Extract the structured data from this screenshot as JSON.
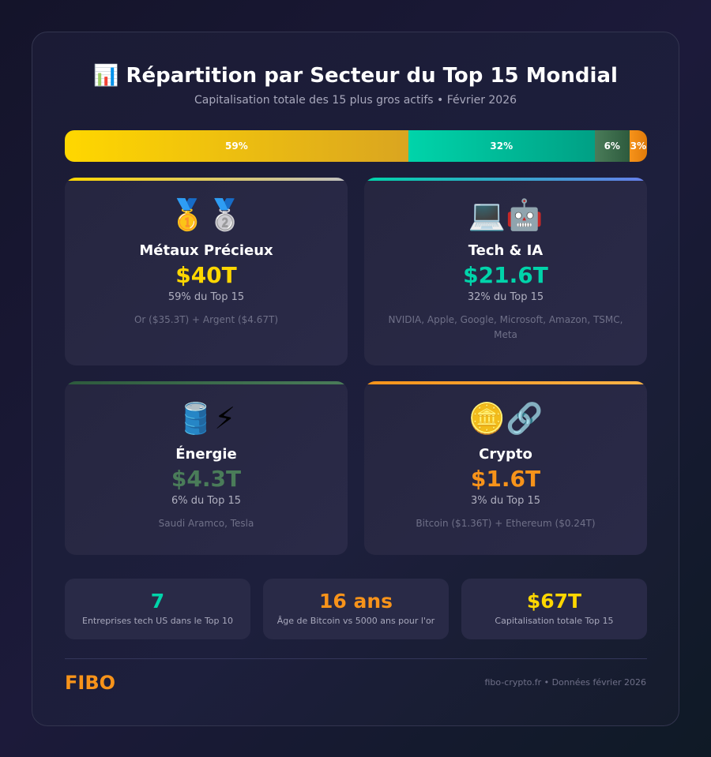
{
  "header": {
    "title": "📊 Répartition par Secteur du Top 15 Mondial",
    "subtitle": "Capitalisation totale des 15 plus gros actifs • Février 2026"
  },
  "distribution": [
    {
      "label": "59%",
      "percent": 59,
      "color": "#ffd700"
    },
    {
      "label": "32%",
      "percent": 32,
      "color": "#00d4aa"
    },
    {
      "label": "6%",
      "percent": 6,
      "color": "#4a7c59"
    },
    {
      "label": "3%",
      "percent": 3,
      "color": "#f7931a"
    }
  ],
  "sectors": [
    {
      "emoji": "🥇🥈",
      "name": "Métaux Précieux",
      "value": "$40T",
      "share": "59% du Top 15",
      "details": "Or ($35.3T) + Argent ($4.67T)",
      "color": "#ffd700"
    },
    {
      "emoji": "💻🤖",
      "name": "Tech & IA",
      "value": "$21.6T",
      "share": "32% du Top 15",
      "details": "NVIDIA, Apple, Google, Microsoft, Amazon, TSMC, Meta",
      "color": "#00d4aa"
    },
    {
      "emoji": "🛢️⚡",
      "name": "Énergie",
      "value": "$4.3T",
      "share": "6% du Top 15",
      "details": "Saudi Aramco, Tesla",
      "color": "#4a7c59"
    },
    {
      "emoji": "🪙🔗",
      "name": "Crypto",
      "value": "$1.6T",
      "share": "3% du Top 15",
      "details": "Bitcoin ($1.36T) + Ethereum ($0.24T)",
      "color": "#f7931a"
    }
  ],
  "stats": [
    {
      "value": "7",
      "label": "Entreprises tech US dans le Top 10",
      "color": "#00d4aa"
    },
    {
      "value": "16 ans",
      "label": "Âge de Bitcoin vs 5000 ans pour l'or",
      "color": "#f7931a"
    },
    {
      "value": "$67T",
      "label": "Capitalisation totale Top 15",
      "color": "#ffd700"
    }
  ],
  "footer": {
    "logo": "FIBO",
    "source": "fibo-crypto.fr • Données février 2026"
  }
}
